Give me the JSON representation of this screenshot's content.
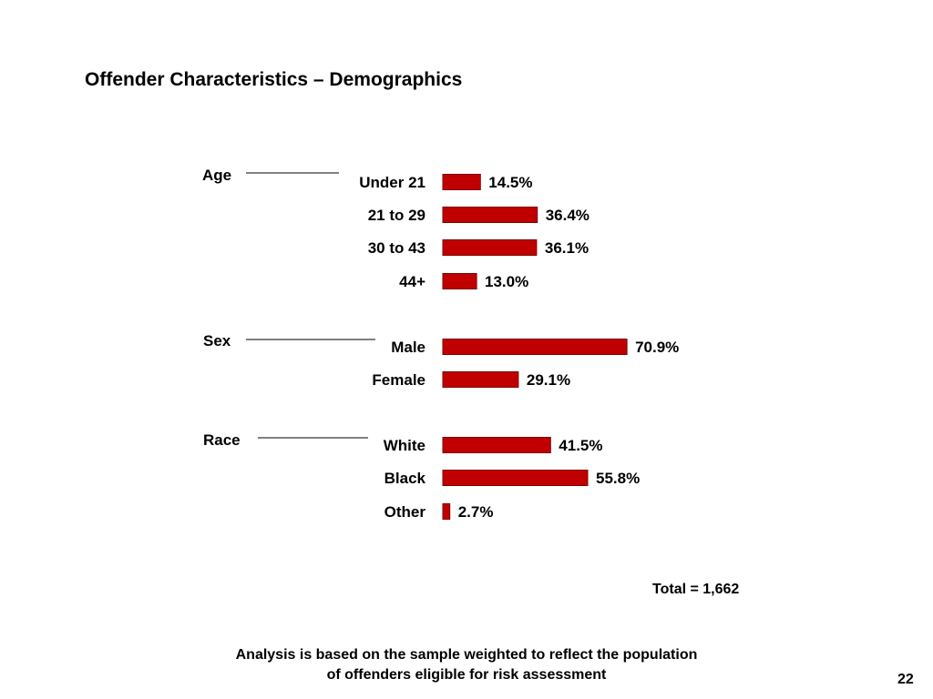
{
  "slide": {
    "title": "Offender Characteristics – Demographics",
    "total": "Total = 1,662",
    "footnote_line1": "Analysis is based on the sample weighted to reflect the population",
    "footnote_line2": "of offenders eligible for risk assessment",
    "page_number": "22"
  },
  "chart_data": {
    "type": "bar",
    "orientation": "horizontal",
    "bar_color": "#c00000",
    "bar_outline": "#7f0000",
    "value_suffix": "%",
    "xlim": [
      0,
      100
    ],
    "groups": [
      {
        "label": "Age",
        "items": [
          {
            "category": "Under 21",
            "value": 14.5,
            "label": "14.5%"
          },
          {
            "category": "21 to 29",
            "value": 36.4,
            "label": "36.4%"
          },
          {
            "category": "30 to 43",
            "value": 36.1,
            "label": "36.1%"
          },
          {
            "category": "44+",
            "value": 13.0,
            "label": "13.0%"
          }
        ]
      },
      {
        "label": "Sex",
        "items": [
          {
            "category": "Male",
            "value": 70.9,
            "label": "70.9%"
          },
          {
            "category": "Female",
            "value": 29.1,
            "label": "29.1%"
          }
        ]
      },
      {
        "label": "Race",
        "items": [
          {
            "category": "White",
            "value": 41.5,
            "label": "41.5%"
          },
          {
            "category": "Black",
            "value": 55.8,
            "label": "55.8%"
          },
          {
            "category": "Other",
            "value": 2.7,
            "label": "2.7%"
          }
        ]
      }
    ]
  }
}
